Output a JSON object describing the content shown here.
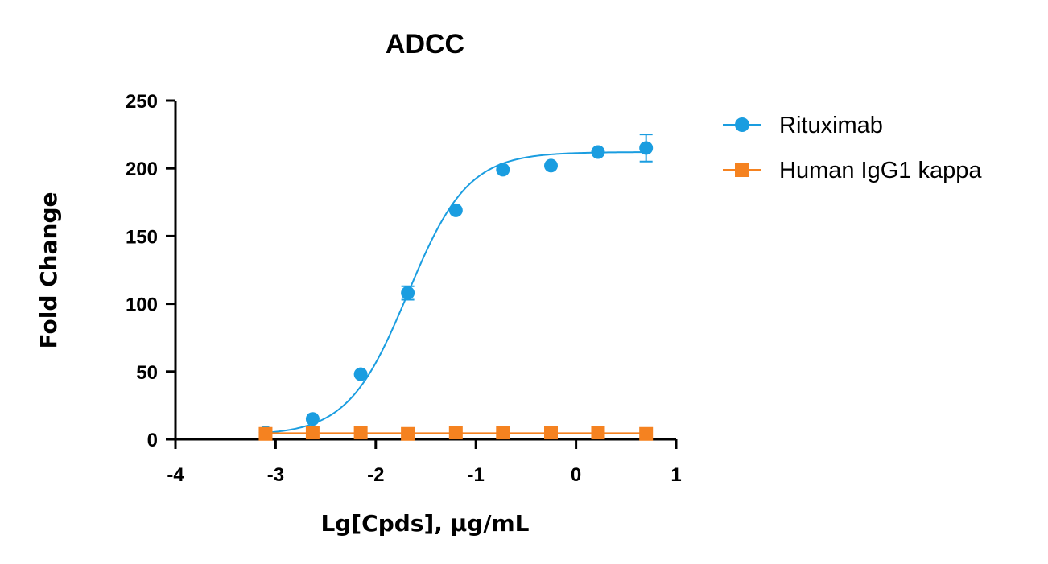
{
  "chart_data": {
    "type": "line",
    "title": "ADCC",
    "xlabel": "Lg[Cpds], μg/mL",
    "ylabel": "Fold Change",
    "xlim": [
      -4,
      1
    ],
    "ylim": [
      0,
      250
    ],
    "xticks": [
      -4,
      -3,
      -2,
      -1,
      0,
      1
    ],
    "yticks": [
      0,
      50,
      100,
      150,
      200,
      250
    ],
    "xtick_labels": [
      "-4",
      "-3",
      "-2",
      "-1",
      "0",
      "1"
    ],
    "ytick_labels": [
      "0",
      "50",
      "100",
      "150",
      "200",
      "250"
    ],
    "grid": false,
    "legend_position": "top-right",
    "series": [
      {
        "name": "Rituximab",
        "color": "#1a9de0",
        "marker": "circle",
        "points": [
          {
            "x": -3.1,
            "y": 5,
            "err": 0
          },
          {
            "x": -2.63,
            "y": 15,
            "err": 0
          },
          {
            "x": -2.15,
            "y": 48,
            "err": 0
          },
          {
            "x": -1.68,
            "y": 108,
            "err": 5
          },
          {
            "x": -1.2,
            "y": 169,
            "err": 0
          },
          {
            "x": -0.73,
            "y": 199,
            "err": 0
          },
          {
            "x": -0.25,
            "y": 202,
            "err": 0
          },
          {
            "x": 0.22,
            "y": 212,
            "err": 0
          },
          {
            "x": 0.7,
            "y": 215,
            "err": 10
          }
        ],
        "fit": {
          "model": "4PL",
          "bottom": 3,
          "top": 212,
          "logEC50": -1.68,
          "hill": 1.45
        }
      },
      {
        "name": "Human IgG1 kappa",
        "color": "#f58220",
        "marker": "square",
        "points": [
          {
            "x": -3.1,
            "y": 4,
            "err": 0
          },
          {
            "x": -2.63,
            "y": 5,
            "err": 0
          },
          {
            "x": -2.15,
            "y": 5,
            "err": 0
          },
          {
            "x": -1.68,
            "y": 4,
            "err": 0
          },
          {
            "x": -1.2,
            "y": 5,
            "err": 0
          },
          {
            "x": -0.73,
            "y": 5,
            "err": 0
          },
          {
            "x": -0.25,
            "y": 5,
            "err": 0
          },
          {
            "x": 0.22,
            "y": 5,
            "err": 0
          },
          {
            "x": 0.7,
            "y": 4,
            "err": 0
          }
        ],
        "fit": {
          "model": "flat",
          "value": 4.5
        }
      }
    ]
  }
}
